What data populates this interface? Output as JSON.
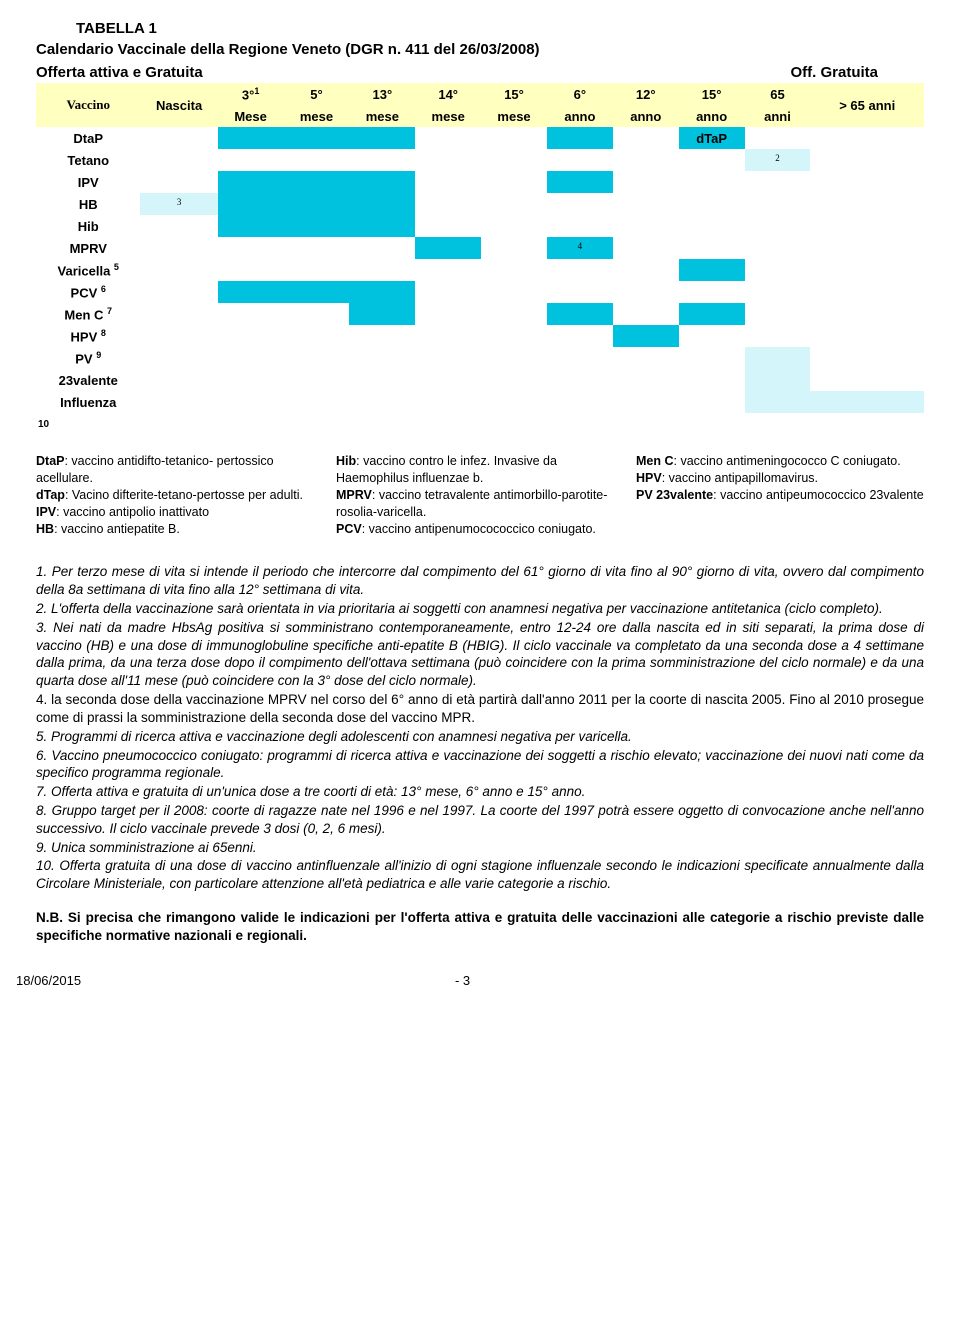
{
  "title": "TABELLA 1",
  "subtitle": "Calendario Vaccinale della Regione Veneto (DGR n. 411 del 26/03/2008)",
  "offerta_left": "Offerta attiva e Gratuita",
  "offerta_right": "Off. Gratuita",
  "columns": [
    {
      "l1": "Vaccino",
      "l2": ""
    },
    {
      "l1": "Nascita",
      "l2": ""
    },
    {
      "l1": "3°",
      "l2": "Mese",
      "sup": "1"
    },
    {
      "l1": "5°",
      "l2": "mese"
    },
    {
      "l1": "13°",
      "l2": "mese"
    },
    {
      "l1": "14°",
      "l2": "mese"
    },
    {
      "l1": "15°",
      "l2": "mese"
    },
    {
      "l1": "6°",
      "l2": "anno"
    },
    {
      "l1": "12°",
      "l2": "anno"
    },
    {
      "l1": "15°",
      "l2": "anno"
    },
    {
      "l1": "65",
      "l2": "anni"
    },
    {
      "l1": "> 65 anni",
      "l2": ""
    }
  ],
  "rows": [
    {
      "name": "DtaP",
      "cells": [
        "",
        "",
        "on",
        "on",
        "on",
        "",
        "",
        "on",
        "",
        "dtap",
        "",
        ""
      ]
    },
    {
      "name": "Tetano",
      "cells": [
        "",
        "",
        "",
        "",
        "",
        "",
        "",
        "",
        "",
        "",
        "pale2",
        ""
      ]
    },
    {
      "name": "IPV",
      "cells": [
        "",
        "",
        "on",
        "on",
        "on",
        "",
        "",
        "on",
        "",
        "",
        "",
        ""
      ]
    },
    {
      "name": "HB",
      "cells": [
        "",
        "pale3",
        "on",
        "on",
        "on",
        "",
        "",
        "",
        "",
        "",
        "",
        ""
      ]
    },
    {
      "name": "Hib",
      "cells": [
        "",
        "",
        "on",
        "on",
        "on",
        "",
        "",
        "",
        "",
        "",
        "",
        ""
      ]
    },
    {
      "name": "MPRV",
      "cells": [
        "",
        "",
        "",
        "",
        "",
        "on",
        "",
        "on4",
        "",
        "",
        "",
        ""
      ]
    },
    {
      "name": "Varicella",
      "sub": "5",
      "cells": [
        "",
        "",
        "",
        "",
        "",
        "",
        "",
        "",
        "",
        "on",
        "",
        ""
      ]
    },
    {
      "name": "PCV",
      "sub": "6",
      "cells": [
        "",
        "",
        "on",
        "on",
        "on",
        "",
        "",
        "",
        "",
        "",
        "",
        ""
      ]
    },
    {
      "name": "Men C",
      "sub": "7",
      "cells": [
        "",
        "",
        "",
        "",
        "on",
        "",
        "",
        "on",
        "",
        "on",
        "",
        ""
      ]
    },
    {
      "name": "HPV",
      "sub": "8",
      "cells": [
        "",
        "",
        "",
        "",
        "",
        "",
        "",
        "",
        "on",
        "",
        "",
        ""
      ]
    },
    {
      "name": "PV",
      "sub": "9",
      "cells": [
        "",
        "",
        "",
        "",
        "",
        "",
        "",
        "",
        "",
        "",
        "pale",
        ""
      ]
    },
    {
      "name": "23valente",
      "cells": [
        "",
        "",
        "",
        "",
        "",
        "",
        "",
        "",
        "",
        "",
        "pale",
        ""
      ]
    },
    {
      "name": "Influenza",
      "cells": [
        "",
        "",
        "",
        "",
        "",
        "",
        "",
        "",
        "",
        "",
        "pale",
        "pale"
      ]
    },
    {
      "name": "10",
      "small": true,
      "cells": [
        "",
        "",
        "",
        "",
        "",
        "",
        "",
        "",
        "",
        "",
        "",
        ""
      ]
    }
  ],
  "dtap_text": "dTaP",
  "legend": {
    "col1": [
      {
        "b": "DtaP",
        "t": ": vaccino antidifto-tetanico- pertossico acellulare."
      },
      {
        "b": "dTap",
        "t": ": Vacino difterite-tetano-pertosse per adulti."
      },
      {
        "b": "IPV",
        "t": ": vaccino antipolio inattivato"
      },
      {
        "b": "HB",
        "t": ": vaccino antiepatite B."
      }
    ],
    "col2": [
      {
        "b": "Hib",
        "t": ": vaccino contro le infez. Invasive da Haemophilus influenzae b."
      },
      {
        "b": "MPRV",
        "t": ": vaccino tetravalente antimorbillo-parotite-rosolia-varicella."
      },
      {
        "b": "PCV",
        "t": ": vaccino antipenumocococcico coniugato."
      }
    ],
    "col3": [
      {
        "b": "Men C",
        "t": ": vaccino antimeningococco C coniugato."
      },
      {
        "b": "HPV",
        "t": ": vaccino antipapillomavirus."
      },
      {
        "b": "PV 23valente",
        "t": ": vaccino antipeumococcico 23valente"
      }
    ]
  },
  "notes": [
    "1. Per terzo mese di vita si intende il periodo che intercorre dal compimento del 61° giorno di vita fino al 90° giorno di vita, ovvero dal compimento della 8a settimana di vita fino alla 12° settimana di vita.",
    "2. L'offerta della vaccinazione sarà orientata in via prioritaria ai soggetti con anamnesi negativa per vaccinazione antitetanica (ciclo completo).",
    "3. Nei nati da madre HbsAg positiva si somministrano contemporaneamente, entro 12-24 ore dalla nascita ed in siti separati, la prima dose di vaccino (HB) e una dose di immunoglobuline specifiche anti-epatite B (HBIG). Il ciclo vaccinale va completato da una seconda dose a 4 settimane dalla prima, da una terza dose dopo il compimento dell'ottava settimana (può coincidere con la prima somministrazione del ciclo normale) e da una quarta dose all'11 mese (può coincidere con la 3° dose del ciclo normale).",
    "4. la seconda dose della vaccinazione MPRV nel corso del 6° anno di età partirà dall'anno 2011 per la coorte di nascita 2005. Fino al 2010 prosegue come di prassi la somministrazione della seconda dose del vaccino MPR.",
    "5. Programmi di ricerca attiva e vaccinazione degli adolescenti con anamnesi negativa per varicella.",
    "6. Vaccino pneumococcico coniugato: programmi di ricerca attiva e vaccinazione dei soggetti a rischio elevato; vaccinazione dei nuovi nati come da specifico programma regionale.",
    "7. Offerta attiva e gratuita di un'unica dose a tre coorti di età: 13° mese, 6° anno e 15° anno.",
    "8. Gruppo target per il 2008: coorte di ragazze nate nel 1996 e nel 1997. La coorte del 1997 potrà essere oggetto di convocazione anche nell'anno successivo. Il ciclo vaccinale prevede 3 dosi (0, 2, 6 mesi).",
    "9. Unica somministrazione ai 65enni.",
    "10. Offerta gratuita di una dose di vaccino antinfluenzale all'inizio di ogni stagione influenzale secondo le indicazioni specificate annualmente dalla Circolare Ministeriale, con particolare attenzione all'età pediatrica e alle varie categorie a rischio."
  ],
  "notes_italic": [
    true,
    true,
    true,
    false,
    true,
    true,
    true,
    true,
    true,
    true
  ],
  "nb": "N.B. Si precisa che rimangono valide le indicazioni per l'offerta attiva e gratuita delle vaccinazioni alle categorie a rischio previste dalle specifiche normative nazionali e regionali.",
  "footer_date": "18/06/2015",
  "footer_page": "- 3",
  "colors": {
    "header_bg": "#ffffc0",
    "cell_on": "#00c2de",
    "cell_pale": "#d4f6fa",
    "page_bg": "#ffffff"
  }
}
